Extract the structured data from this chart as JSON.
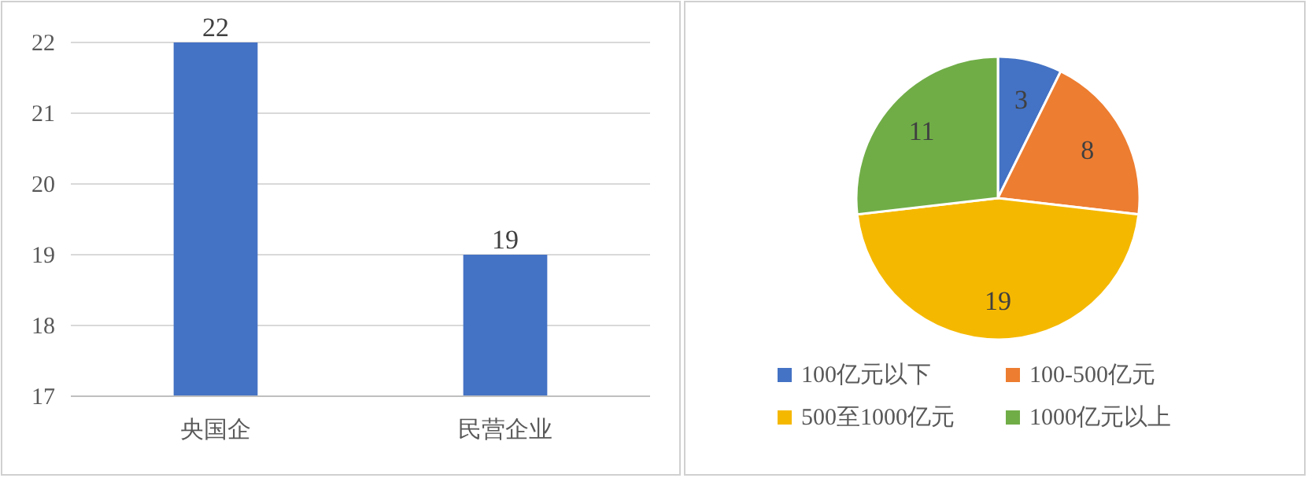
{
  "chart_data": [
    {
      "type": "bar",
      "categories": [
        "央国企",
        "民营企业"
      ],
      "values": [
        22,
        19
      ],
      "color": "#4472c4",
      "ylim": [
        17,
        22
      ],
      "yticks": [
        17,
        18,
        19,
        20,
        21,
        22
      ],
      "grid": "y",
      "data_labels": true
    },
    {
      "type": "pie",
      "categories": [
        "100亿元以下",
        "100-500亿元",
        "500至1000亿元",
        "1000亿元以上"
      ],
      "values": [
        3,
        8,
        19,
        11
      ],
      "colors": [
        "#4472c4",
        "#ed7d31",
        "#f5b800",
        "#70ad47"
      ],
      "data_labels": true,
      "legend": "bottom"
    }
  ]
}
